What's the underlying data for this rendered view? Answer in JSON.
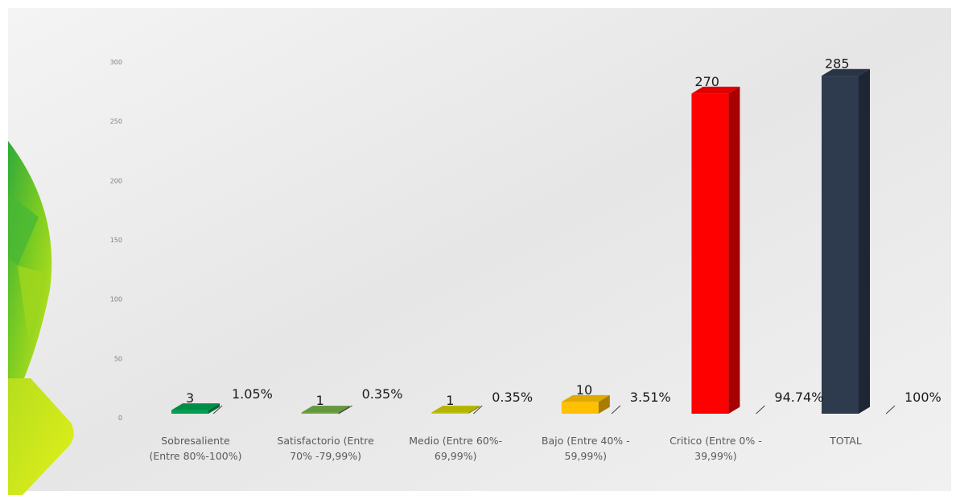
{
  "chart_data": {
    "type": "bar",
    "style": "3d-column",
    "categories": [
      [
        "Sobresaliente",
        "(Entre 80%-100%)"
      ],
      [
        "Satisfactorio (Entre",
        "70% -79,99%)"
      ],
      [
        "Medio (Entre 60%-",
        "69,99%)"
      ],
      [
        "Bajo (Entre 40% -",
        "59,99%)"
      ],
      [
        "Critico (Entre 0% -",
        "39,99%)"
      ],
      [
        "TOTAL"
      ]
    ],
    "series": [
      {
        "values": [
          3,
          1,
          1,
          10,
          270,
          285
        ],
        "value_labels": [
          "3",
          "1",
          "1",
          "10",
          "270",
          "285"
        ],
        "percent_labels": [
          "1.05%",
          "0.35%",
          "0.35%",
          "3.51%",
          "94.74%",
          "100%"
        ],
        "colors": [
          "#00A050",
          "#70AD47",
          "#CCCC00",
          "#FFC000",
          "#FF0000",
          "#2E3A4E"
        ]
      }
    ],
    "yticks": [
      "0",
      "50",
      "100",
      "150",
      "200",
      "250",
      "300"
    ],
    "ylim": [
      0,
      300
    ],
    "grid": false,
    "legend": "none",
    "title": "",
    "xlabel": "",
    "ylabel": ""
  },
  "colors": {
    "plot_background": "#e9e9e9",
    "decor_green_dark": "#38b13a",
    "decor_green_light": "#8bd31f",
    "decor_yellow": "#d4ec1a"
  }
}
